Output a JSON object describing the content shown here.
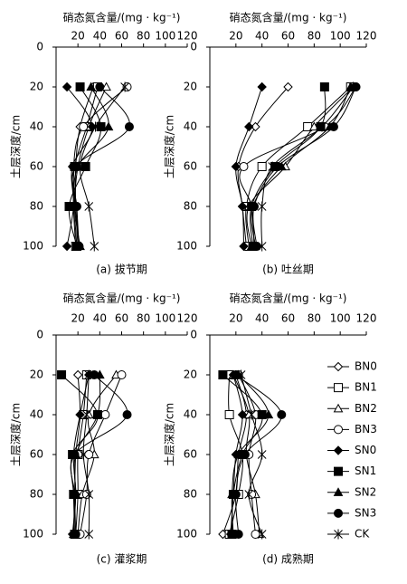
{
  "chart_data": [
    {
      "type": "line",
      "title": "(a) 拔节期",
      "x_label": "硝态氮含量/(mg · kg⁻¹)",
      "y_label": "土层深度/cm",
      "xlim": [
        0,
        120
      ],
      "xticks": [
        20,
        40,
        60,
        80,
        100,
        120
      ],
      "ylim": [
        0,
        100
      ],
      "yticks": [
        0,
        20,
        40,
        60,
        80,
        100
      ],
      "y_inverted": true,
      "y": [
        20,
        40,
        60,
        80,
        100
      ],
      "series": [
        {
          "marker": "diamond-open",
          "color": "#000",
          "values": [
            34,
            22,
            18,
            18,
            20
          ]
        },
        {
          "marker": "square-open",
          "color": "#000",
          "values": [
            38,
            28,
            17,
            16,
            18
          ]
        },
        {
          "marker": "triangle-open",
          "color": "#000",
          "values": [
            46,
            30,
            20,
            17,
            19
          ]
        },
        {
          "marker": "circle-open",
          "color": "#000",
          "values": [
            65,
            25,
            16,
            18,
            21
          ]
        },
        {
          "marker": "diamond",
          "color": "#000",
          "values": [
            10,
            33,
            15,
            16,
            10
          ]
        },
        {
          "marker": "square",
          "color": "#000",
          "values": [
            22,
            41,
            27,
            12,
            19
          ]
        },
        {
          "marker": "triangle",
          "color": "#000",
          "values": [
            32,
            48,
            20,
            17,
            22
          ]
        },
        {
          "marker": "circle",
          "color": "#000",
          "values": [
            40,
            67,
            18,
            19,
            21
          ]
        },
        {
          "marker": "star",
          "color": "#000",
          "values": [
            63,
            36,
            22,
            30,
            35
          ]
        }
      ]
    },
    {
      "type": "line",
      "title": "(b) 吐丝期",
      "x_label": "硝态氮含量/(mg · kg⁻¹)",
      "y_label": "土层深度/cm",
      "xlim": [
        0,
        120
      ],
      "xticks": [
        20,
        40,
        60,
        80,
        100,
        120
      ],
      "ylim": [
        0,
        100
      ],
      "yticks": [
        0,
        20,
        40,
        60,
        80,
        100
      ],
      "y_inverted": true,
      "y": [
        20,
        40,
        60,
        80,
        100
      ],
      "series": [
        {
          "marker": "diamond-open",
          "color": "#000",
          "values": [
            60,
            35,
            22,
            25,
            28
          ]
        },
        {
          "marker": "square-open",
          "color": "#000",
          "values": [
            108,
            75,
            40,
            28,
            30
          ]
        },
        {
          "marker": "triangle-open",
          "color": "#000",
          "values": [
            110,
            80,
            58,
            30,
            32
          ]
        },
        {
          "marker": "circle-open",
          "color": "#000",
          "values": [
            112,
            88,
            26,
            32,
            34
          ]
        },
        {
          "marker": "diamond",
          "color": "#000",
          "values": [
            40,
            30,
            20,
            25,
            26
          ]
        },
        {
          "marker": "square",
          "color": "#000",
          "values": [
            88,
            85,
            50,
            32,
            33
          ]
        },
        {
          "marker": "triangle",
          "color": "#000",
          "values": [
            108,
            92,
            55,
            33,
            35
          ]
        },
        {
          "marker": "circle",
          "color": "#000",
          "values": [
            112,
            95,
            52,
            34,
            36
          ]
        },
        {
          "marker": "star",
          "color": "#000",
          "values": [
            110,
            86,
            48,
            40,
            40
          ]
        }
      ]
    },
    {
      "type": "line",
      "title": "(c) 灌浆期",
      "x_label": "硝态氮含量/(mg · kg⁻¹)",
      "y_label": "土层深度/cm",
      "xlim": [
        0,
        120
      ],
      "xticks": [
        20,
        40,
        60,
        80,
        100,
        120
      ],
      "ylim": [
        0,
        100
      ],
      "yticks": [
        0,
        20,
        40,
        60,
        80,
        100
      ],
      "y_inverted": true,
      "y": [
        20,
        40,
        60,
        80,
        100
      ],
      "series": [
        {
          "marker": "diamond-open",
          "color": "#000",
          "values": [
            20,
            22,
            18,
            17,
            16
          ]
        },
        {
          "marker": "square-open",
          "color": "#000",
          "values": [
            28,
            25,
            20,
            20,
            18
          ]
        },
        {
          "marker": "triangle-open",
          "color": "#000",
          "values": [
            55,
            30,
            35,
            24,
            20
          ]
        },
        {
          "marker": "circle-open",
          "color": "#000",
          "values": [
            60,
            45,
            30,
            28,
            22
          ]
        },
        {
          "marker": "diamond",
          "color": "#000",
          "values": [
            30,
            22,
            16,
            18,
            15
          ]
        },
        {
          "marker": "square",
          "color": "#000",
          "values": [
            5,
            38,
            15,
            16,
            17
          ]
        },
        {
          "marker": "triangle",
          "color": "#000",
          "values": [
            40,
            38,
            18,
            18,
            16
          ]
        },
        {
          "marker": "circle",
          "color": "#000",
          "values": [
            35,
            65,
            17,
            17,
            18
          ]
        },
        {
          "marker": "star",
          "color": "#000",
          "values": [
            30,
            28,
            25,
            30,
            30
          ]
        }
      ]
    },
    {
      "type": "line",
      "title": "(d) 成熟期",
      "x_label": "硝态氮含量/(mg · kg⁻¹)",
      "y_label": "土层深度/cm",
      "xlim": [
        0,
        120
      ],
      "xticks": [
        20,
        40,
        60,
        80,
        100,
        120
      ],
      "ylim": [
        0,
        100
      ],
      "yticks": [
        0,
        20,
        40,
        60,
        80,
        100
      ],
      "y_inverted": true,
      "y": [
        20,
        40,
        60,
        80,
        100
      ],
      "legend": "right",
      "series": [
        {
          "name": "BN0",
          "marker": "diamond-open",
          "color": "#000",
          "values": [
            20,
            28,
            22,
            20,
            10
          ]
        },
        {
          "name": "BN1",
          "marker": "square-open",
          "color": "#000",
          "values": [
            15,
            15,
            25,
            22,
            15
          ]
        },
        {
          "name": "BN2",
          "marker": "triangle-open",
          "color": "#000",
          "values": [
            18,
            30,
            28,
            35,
            38
          ]
        },
        {
          "name": "BN3",
          "marker": "circle-open",
          "color": "#000",
          "values": [
            22,
            35,
            30,
            32,
            35
          ]
        },
        {
          "name": "SN0",
          "marker": "diamond",
          "color": "#000",
          "values": [
            18,
            25,
            20,
            18,
            16
          ]
        },
        {
          "name": "SN1",
          "marker": "square",
          "color": "#000",
          "values": [
            10,
            40,
            25,
            18,
            17
          ]
        },
        {
          "name": "SN2",
          "marker": "triangle",
          "color": "#000",
          "values": [
            22,
            45,
            22,
            17,
            18
          ]
        },
        {
          "name": "SN3",
          "marker": "circle",
          "color": "#000",
          "values": [
            20,
            55,
            27,
            20,
            22
          ]
        },
        {
          "name": "CK",
          "marker": "star",
          "color": "#000",
          "values": [
            24,
            32,
            40,
            30,
            40
          ]
        }
      ]
    }
  ]
}
